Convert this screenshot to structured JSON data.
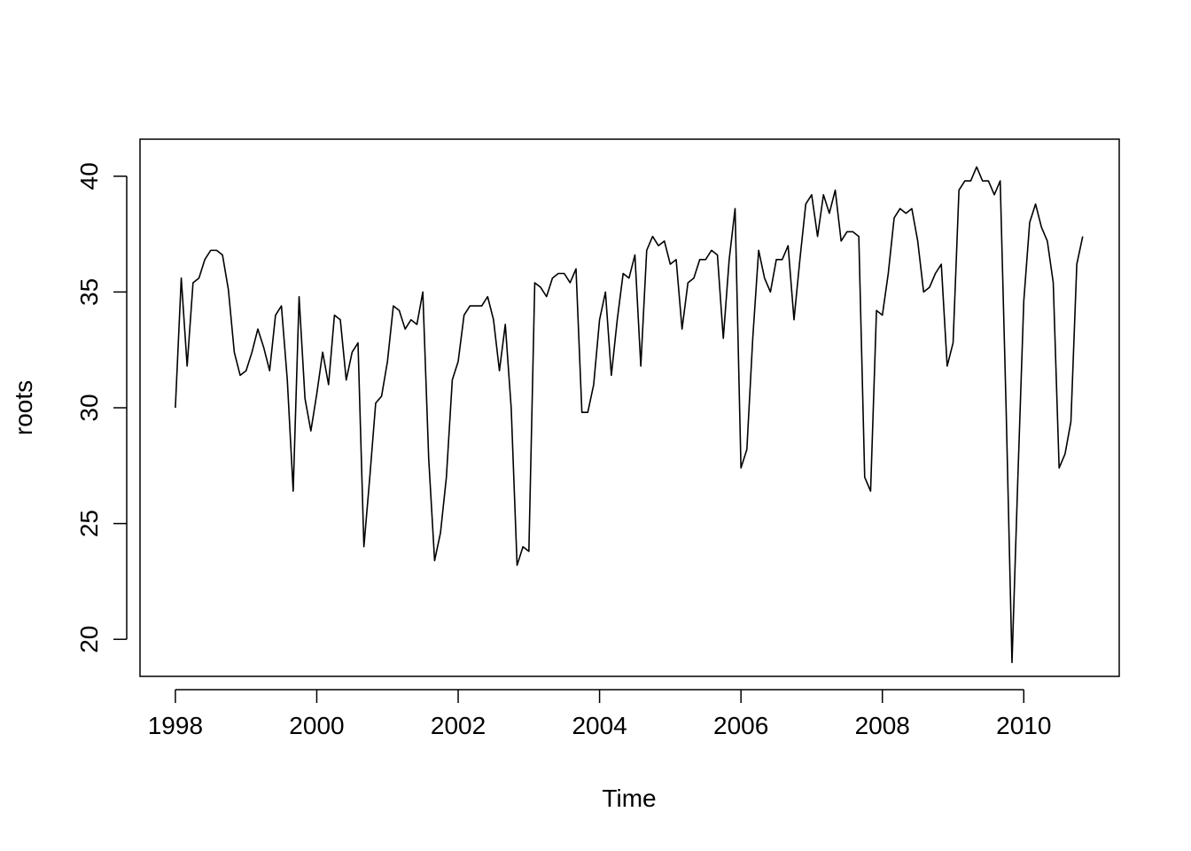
{
  "chart_data": {
    "type": "line",
    "title": "",
    "xlabel": "Time",
    "ylabel": "roots",
    "xlim": [
      1997.5,
      2011.35
    ],
    "ylim": [
      18.4,
      41.6
    ],
    "x_ticks": [
      1998,
      2000,
      2002,
      2004,
      2006,
      2008,
      2010
    ],
    "x_tick_labels": [
      "1998",
      "2000",
      "2002",
      "2004",
      "2006",
      "2008",
      "2010"
    ],
    "y_ticks": [
      20,
      25,
      30,
      35,
      40
    ],
    "y_tick_labels": [
      "20",
      "25",
      "30",
      "35",
      "40"
    ],
    "grid": false,
    "start": 1998,
    "frequency": 12,
    "series": [
      {
        "color": "#000000",
        "values": [
          30.0,
          35.6,
          31.8,
          35.4,
          35.6,
          36.4,
          36.8,
          36.8,
          36.6,
          35.1,
          32.4,
          31.4,
          31.6,
          32.4,
          33.4,
          32.6,
          31.6,
          34.0,
          34.4,
          31.2,
          26.4,
          34.8,
          30.4,
          29.0,
          30.6,
          32.4,
          31.0,
          34.0,
          33.8,
          31.2,
          32.4,
          32.8,
          24.0,
          27.0,
          30.2,
          30.5,
          32.0,
          34.4,
          34.2,
          33.4,
          33.8,
          33.6,
          35.0,
          27.8,
          23.4,
          24.6,
          27.0,
          31.2,
          32.0,
          34.0,
          34.4,
          34.4,
          34.4,
          34.8,
          33.8,
          31.6,
          33.6,
          30.0,
          23.2,
          24.0,
          23.8,
          35.4,
          35.2,
          34.8,
          35.6,
          35.8,
          35.8,
          35.4,
          36.0,
          29.8,
          29.8,
          31.0,
          33.8,
          35.0,
          31.4,
          33.8,
          35.8,
          35.6,
          36.6,
          31.8,
          36.8,
          37.4,
          37.0,
          37.2,
          36.2,
          36.4,
          33.4,
          35.4,
          35.6,
          36.4,
          36.4,
          36.8,
          36.6,
          33.0,
          36.4,
          38.6,
          27.4,
          28.2,
          33.0,
          36.8,
          35.6,
          35.0,
          36.4,
          36.4,
          37.0,
          33.8,
          36.4,
          38.8,
          39.2,
          37.4,
          39.2,
          38.4,
          39.4,
          37.2,
          37.6,
          37.6,
          37.4,
          27.0,
          26.4,
          34.2,
          34.0,
          35.8,
          38.2,
          38.6,
          38.4,
          38.6,
          37.2,
          35.0,
          35.2,
          35.8,
          36.2,
          31.8,
          32.8,
          39.4,
          39.8,
          39.8,
          40.4,
          39.8,
          39.8,
          39.2,
          39.8,
          30.0,
          19.0,
          27.0,
          34.6,
          38.0,
          38.8,
          37.8,
          37.2,
          35.4,
          27.4,
          28.0,
          29.4,
          36.2,
          37.4
        ]
      }
    ]
  }
}
